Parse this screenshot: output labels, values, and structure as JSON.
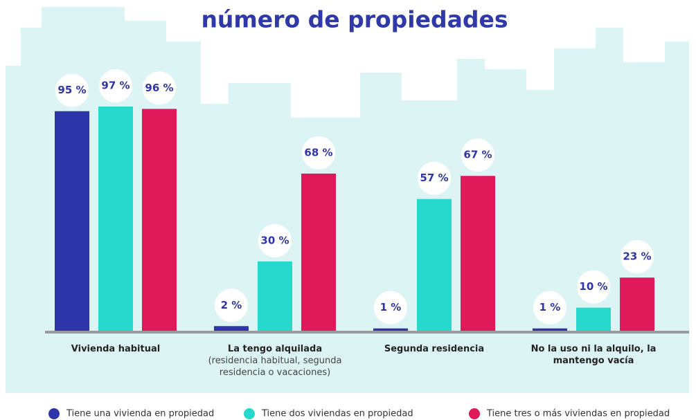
{
  "chart_data": {
    "type": "bar",
    "title": "número de propiedades",
    "categories": [
      "Vivienda habitual",
      "La tengo alquilada",
      "Segunda residencia",
      "No la uso ni la alquilo, la mantengo vacía"
    ],
    "category_notes": [
      null,
      "(residencia habitual, segunda residencia o vacaciones)",
      null,
      null
    ],
    "series": [
      {
        "name": "Tiene una vivienda en propiedad",
        "color": "#2e35a8",
        "values": [
          95,
          2,
          1,
          1
        ],
        "value_labels": [
          "95 %",
          "2 %",
          "1 %",
          "1 %"
        ]
      },
      {
        "name": "Tiene dos viviendas en propiedad",
        "color": "#26d9cc",
        "values": [
          97,
          30,
          57,
          10
        ],
        "value_labels": [
          "97 %",
          "30 %",
          "57 %",
          "10 %"
        ]
      },
      {
        "name": "Tiene tres o más viviendas en propiedad",
        "color": "#e0195a",
        "values": [
          96,
          68,
          67,
          23
        ],
        "value_labels": [
          "96 %",
          "68 %",
          "67 %",
          "23 %"
        ]
      }
    ],
    "ylim": [
      0,
      100
    ]
  }
}
